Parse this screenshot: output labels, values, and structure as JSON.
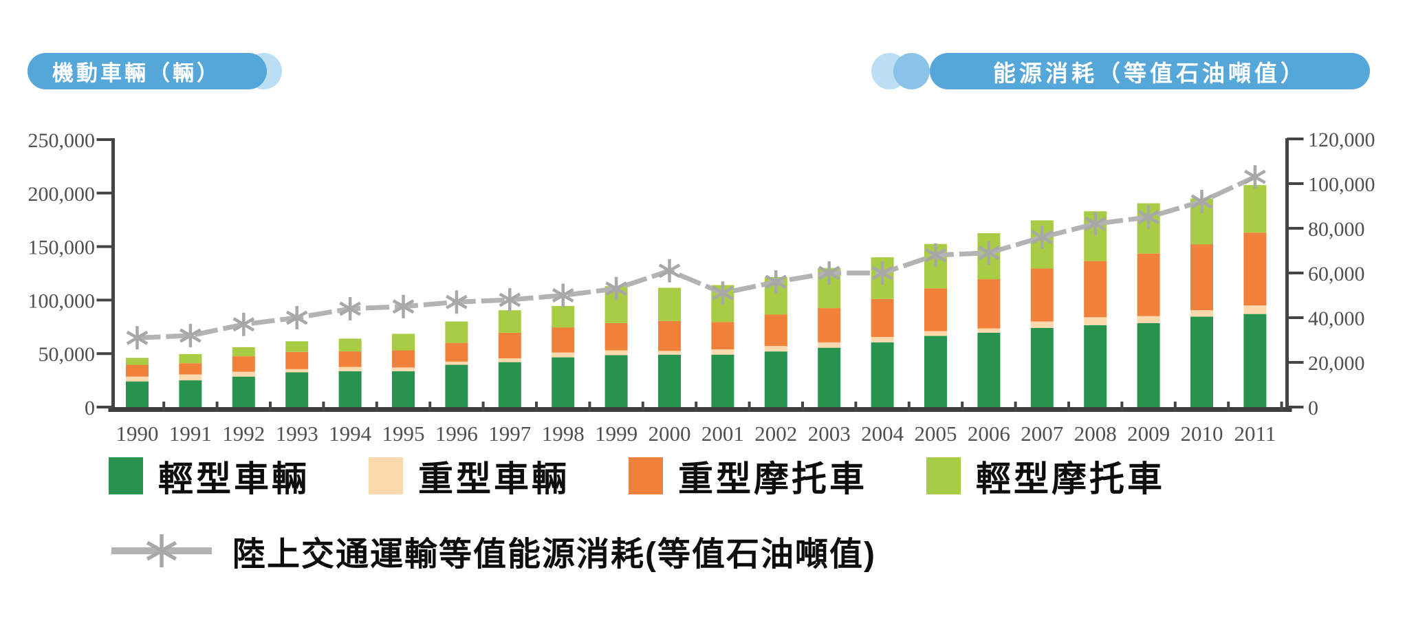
{
  "header": {
    "left_pill": {
      "label": "機動車輛（輛）"
    },
    "right_pill": {
      "label": "能源消耗（等值石油噸值）"
    }
  },
  "colors": {
    "pill_blue": "#55a6d9",
    "pill_circle_mid": "#8ac3e7",
    "pill_circle_light": "#bcdef2",
    "axis": "#454545",
    "tick_text": "#4f4f4f",
    "line_gray": "#b3b3b3",
    "marker_gray": "#a8a8a8",
    "background": "#ffffff"
  },
  "chart_data": {
    "type": "bar",
    "subtype": "stacked-bars-with-line",
    "title": "",
    "grid": false,
    "legend_position": "bottom",
    "categories": [
      "1990",
      "1991",
      "1992",
      "1993",
      "1994",
      "1995",
      "1996",
      "1997",
      "1998",
      "1999",
      "2000",
      "2001",
      "2002",
      "2003",
      "2004",
      "2005",
      "2006",
      "2007",
      "2008",
      "2009",
      "2010",
      "2011"
    ],
    "left_axis": {
      "title": "機動車輛（輛）",
      "min": 0,
      "max": 250000,
      "step": 50000
    },
    "right_axis": {
      "title": "能源消耗（等值石油噸值）",
      "min": 0,
      "max": 120000,
      "step": 20000
    },
    "series": [
      {
        "key": "light-vehicles",
        "name": "輕型車輛",
        "color": "#27934f",
        "axis": "left",
        "values": [
          24000,
          25000,
          28500,
          32500,
          33500,
          33500,
          39500,
          42000,
          46500,
          48500,
          49000,
          49000,
          52000,
          55500,
          60500,
          66500,
          69500,
          74000,
          76500,
          78500,
          84500,
          87000
        ]
      },
      {
        "key": "heavy-vehicles",
        "name": "重型車輛",
        "color": "#fcd9ad",
        "axis": "left",
        "values": [
          4500,
          5500,
          4500,
          3000,
          4000,
          3500,
          3000,
          3500,
          4500,
          4500,
          3500,
          5000,
          5000,
          5000,
          5000,
          4500,
          4000,
          6000,
          7500,
          6500,
          6000,
          8000
        ]
      },
      {
        "key": "heavy-motorcycles",
        "name": "重型摩托車",
        "color": "#f0813a",
        "axis": "left",
        "values": [
          11000,
          10500,
          14500,
          16000,
          14500,
          16000,
          17500,
          24000,
          23500,
          25500,
          28000,
          25500,
          29500,
          32000,
          35500,
          40000,
          46000,
          49500,
          52500,
          58500,
          61500,
          68000
        ]
      },
      {
        "key": "light-motorcycles",
        "name": "輕型摩托車",
        "color": "#a8cc44",
        "axis": "left",
        "values": [
          6500,
          8500,
          8500,
          10000,
          12000,
          15500,
          20000,
          21000,
          20000,
          34500,
          31000,
          34500,
          35000,
          37500,
          39000,
          41500,
          43000,
          45000,
          46500,
          47000,
          43000,
          44500
        ]
      }
    ],
    "line_series": {
      "key": "energy-consumption",
      "name": "陸上交通運輸等值能源消耗(等值石油噸值)",
      "color": "#b3b3b3",
      "marker": "asterisk",
      "axis": "right",
      "values": [
        31000,
        32000,
        37000,
        40000,
        44000,
        45000,
        47000,
        48000,
        50000,
        53000,
        61000,
        51000,
        56000,
        60000,
        60000,
        68000,
        69000,
        76000,
        82000,
        85000,
        92000,
        103000
      ]
    }
  }
}
